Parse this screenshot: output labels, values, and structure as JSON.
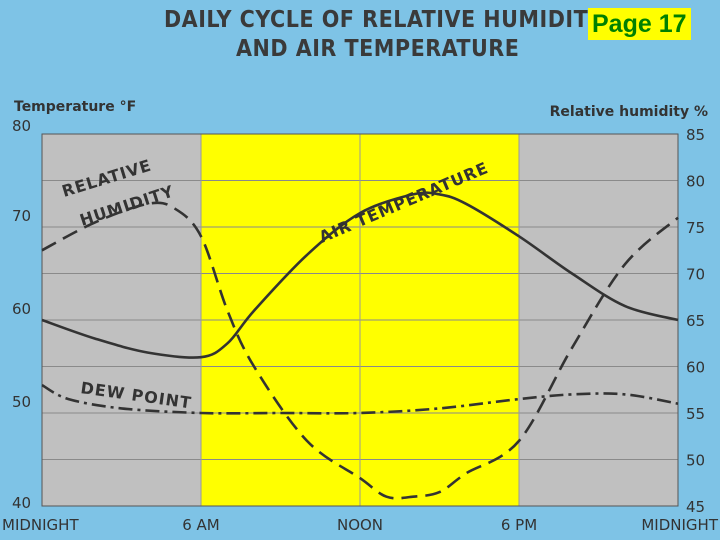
{
  "title_line_1": "DAILY CYCLE OF RELATIVE HUMIDITY",
  "title_line_2": "AND AIR TEMPERATURE",
  "page_label": "Page 17",
  "chart_data": {
    "type": "line",
    "left_axis_title": "Temperature °F",
    "right_axis_title": "Relative humidity %",
    "x_ticks": [
      {
        "x": 0,
        "label": "MIDNIGHT"
      },
      {
        "x": 6,
        "label": "6 AM"
      },
      {
        "x": 12,
        "label": "NOON"
      },
      {
        "x": 18,
        "label": "6 PM"
      },
      {
        "x": 24,
        "label": "MIDNIGHT"
      }
    ],
    "x_range": [
      0,
      24
    ],
    "left_ylim": [
      40,
      80
    ],
    "left_ticks": [
      40,
      50,
      60,
      70,
      80
    ],
    "right_ylim": [
      45,
      85
    ],
    "right_ticks": [
      45,
      50,
      55,
      60,
      65,
      70,
      75,
      80,
      85
    ],
    "daylight_band_hours": [
      6,
      18
    ],
    "colors": {
      "night": "#c0c0c0",
      "day": "#ffff00",
      "background": "#7ec3e6",
      "line": "#333333"
    },
    "series": [
      {
        "name": "AIR TEMPERATURE",
        "axis": "left",
        "style": "solid",
        "x": [
          0,
          2,
          4,
          6,
          7,
          8,
          10,
          12,
          14,
          15,
          16,
          18,
          20,
          22,
          24
        ],
        "y": [
          60,
          58,
          56.5,
          56,
          57.5,
          61,
          67,
          71.5,
          73.5,
          73.5,
          72.5,
          69,
          65,
          61.5,
          60
        ]
      },
      {
        "name": "RELATIVE HUMIDITY",
        "axis": "right",
        "style": "dashed",
        "x": [
          0,
          2,
          4,
          5,
          6,
          7,
          8,
          10,
          12,
          13,
          14,
          15,
          16,
          18,
          20,
          22,
          24
        ],
        "y": [
          72.5,
          75.5,
          77.5,
          77,
          74,
          66,
          60,
          52,
          48,
          46,
          46,
          46.5,
          48.5,
          52,
          62,
          71,
          76
        ]
      },
      {
        "name": "DEW POINT",
        "axis": "left",
        "style": "dash-dot",
        "x": [
          0,
          1,
          3,
          6,
          9,
          12,
          15,
          18,
          20,
          22,
          24
        ],
        "y": [
          53,
          51.5,
          50.5,
          50,
          50,
          50,
          50.5,
          51.5,
          52,
          52,
          51
        ]
      }
    ]
  }
}
